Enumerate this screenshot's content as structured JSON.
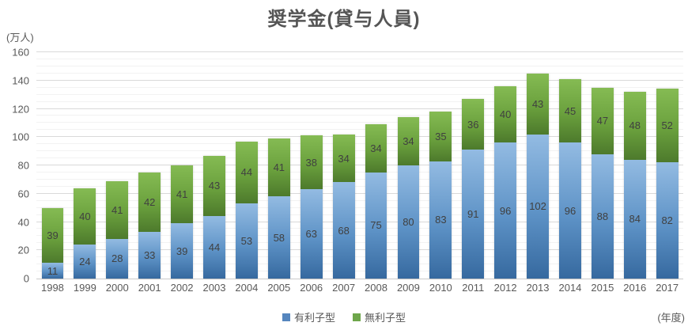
{
  "title": "奨学金(貸与人員)",
  "y_axis": {
    "unit_label": "(万人)",
    "ticks": [
      0,
      20,
      40,
      60,
      80,
      100,
      120,
      140,
      160
    ]
  },
  "x_axis": {
    "unit_label": "(年度)"
  },
  "legend": {
    "items": [
      {
        "label": "有利子型",
        "color": "#5586be"
      },
      {
        "label": "無利子型",
        "color": "#6ea64b"
      }
    ]
  },
  "chart_data": {
    "type": "bar",
    "stacked": true,
    "title": "奨学金(貸与人員)",
    "xlabel": "(年度)",
    "ylabel": "(万人)",
    "categories": [
      "1998",
      "1999",
      "2000",
      "2001",
      "2002",
      "2003",
      "2004",
      "2005",
      "2006",
      "2007",
      "2008",
      "2009",
      "2010",
      "2011",
      "2012",
      "2013",
      "2014",
      "2015",
      "2016",
      "2017"
    ],
    "series": [
      {
        "name": "有利子型",
        "color": "#5586be",
        "values": [
          11,
          24,
          28,
          33,
          39,
          44,
          53,
          58,
          63,
          68,
          75,
          80,
          83,
          91,
          96,
          102,
          96,
          88,
          84,
          82
        ]
      },
      {
        "name": "無利子型",
        "color": "#6ea64b",
        "values": [
          39,
          40,
          41,
          42,
          41,
          43,
          44,
          41,
          38,
          34,
          34,
          34,
          35,
          36,
          40,
          43,
          45,
          47,
          48,
          52
        ]
      }
    ],
    "ylim": [
      0,
      160
    ],
    "y_major_step": 20,
    "y_minor_step": 5,
    "grid": true,
    "legend_position": "bottom",
    "data_labels": true
  }
}
